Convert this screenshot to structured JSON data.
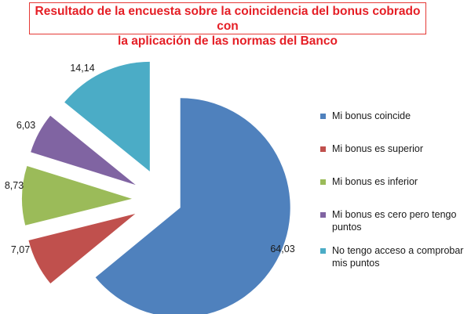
{
  "title": {
    "line1": "Resultado de la encuesta sobre la coincidencia del bonus cobrado con",
    "line2": "la aplicación de las normas del Banco"
  },
  "chart_data": {
    "type": "pie",
    "exploded": true,
    "legend_position": "right",
    "slices": [
      {
        "name": "Mi bonus coincide",
        "value": 64.03,
        "label": "64,03",
        "color": "#4f81bd"
      },
      {
        "name": "Mi bonus es superior",
        "value": 7.07,
        "label": "7,07",
        "color": "#c0504d"
      },
      {
        "name": "Mi bonus es inferior",
        "value": 8.73,
        "label": "8,73",
        "color": "#9bbb59"
      },
      {
        "name": "Mi bonus es cero pero tengo puntos",
        "value": 6.03,
        "label": "6,03",
        "color": "#8064a2"
      },
      {
        "name": "No tengo acceso a comprobar mis puntos",
        "value": 14.14,
        "label": "14,14",
        "color": "#4bacc6"
      }
    ]
  }
}
